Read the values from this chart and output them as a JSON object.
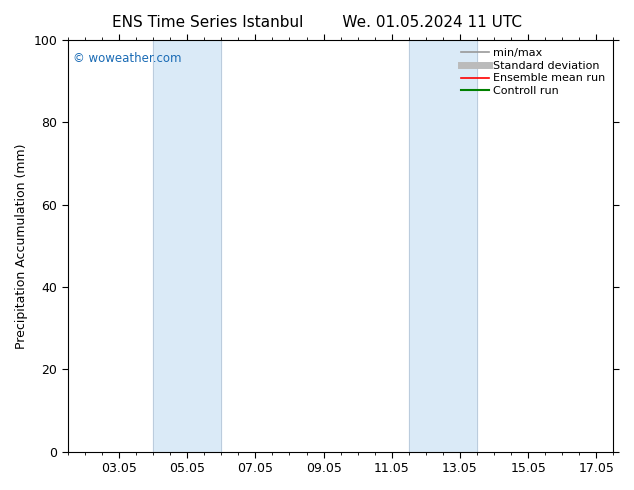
{
  "title_left": "ENS Time Series Istanbul",
  "title_right": "We. 01.05.2024 11 UTC",
  "ylabel": "Precipitation Accumulation (mm)",
  "ylim": [
    0,
    100
  ],
  "yticks": [
    0,
    20,
    40,
    60,
    80,
    100
  ],
  "xtick_positions": [
    2,
    4,
    6,
    8,
    10,
    12,
    14,
    16
  ],
  "xtick_labels": [
    "03.05",
    "05.05",
    "07.05",
    "09.05",
    "11.05",
    "13.05",
    "15.05",
    "17.05"
  ],
  "xlim": [
    0.5,
    16.5
  ],
  "shaded_regions": [
    {
      "x_start": 3.0,
      "x_end": 5.0,
      "color": "#daeaf7"
    },
    {
      "x_start": 10.5,
      "x_end": 12.5,
      "color": "#daeaf7"
    }
  ],
  "watermark_text": "© woweather.com",
  "watermark_color": "#1a6bb5",
  "legend_entries": [
    {
      "label": "min/max",
      "color": "#999999",
      "lw": 1.2
    },
    {
      "label": "Standard deviation",
      "color": "#bbbbbb",
      "lw": 5
    },
    {
      "label": "Ensemble mean run",
      "color": "red",
      "lw": 1.2
    },
    {
      "label": "Controll run",
      "color": "green",
      "lw": 1.5
    }
  ],
  "background_color": "#ffffff",
  "title_fontsize": 11,
  "label_fontsize": 9,
  "tick_fontsize": 9,
  "legend_fontsize": 8
}
